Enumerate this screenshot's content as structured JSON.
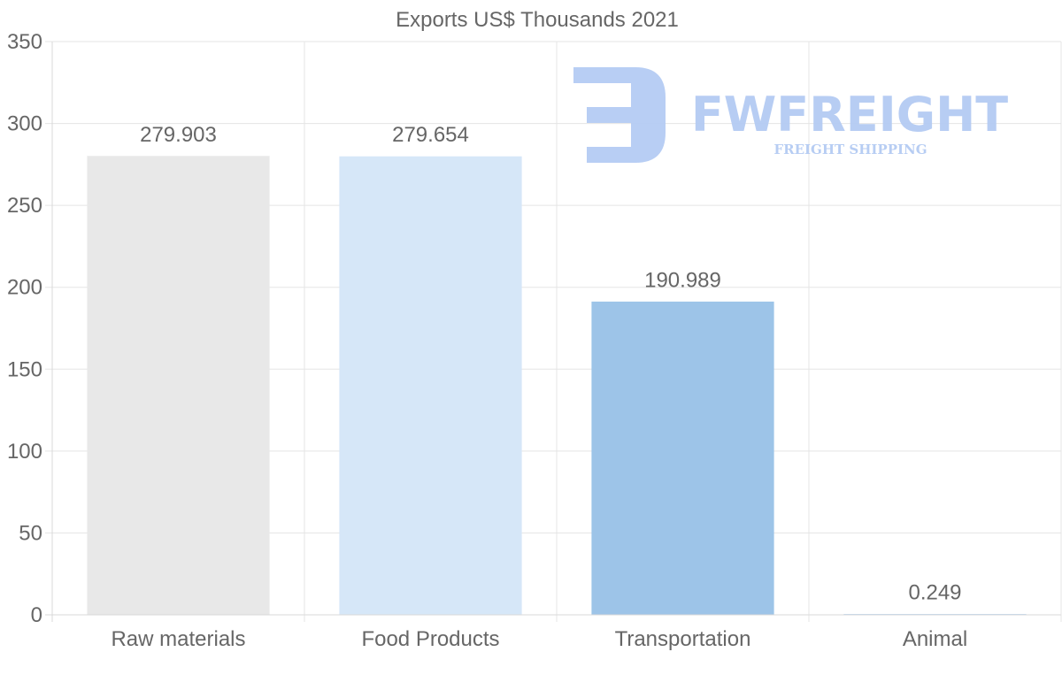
{
  "chart_data": {
    "type": "bar",
    "title": "Exports US$ Thousands 2021",
    "categories": [
      "Raw materials",
      "Food Products",
      "Transportation",
      "Animal"
    ],
    "values": [
      279.903,
      279.654,
      190.989,
      0.249
    ],
    "value_labels": [
      "279.903",
      "279.654",
      "190.989",
      "0.249"
    ],
    "bar_colors": [
      "#e8e8e8",
      "#d6e7f8",
      "#9dc4e8",
      "#bcd8f2"
    ],
    "ylim": [
      0,
      350
    ],
    "yticks": [
      0,
      50,
      100,
      150,
      200,
      250,
      300,
      350
    ],
    "xlabel": "",
    "ylabel": "",
    "grid": true,
    "legend": "none"
  },
  "watermark": {
    "brand": "FWFREIGHT",
    "tagline": "FREIGHT SHIPPING",
    "color": "#b4cbf3",
    "icon": "fwfreight-logo-icon"
  }
}
